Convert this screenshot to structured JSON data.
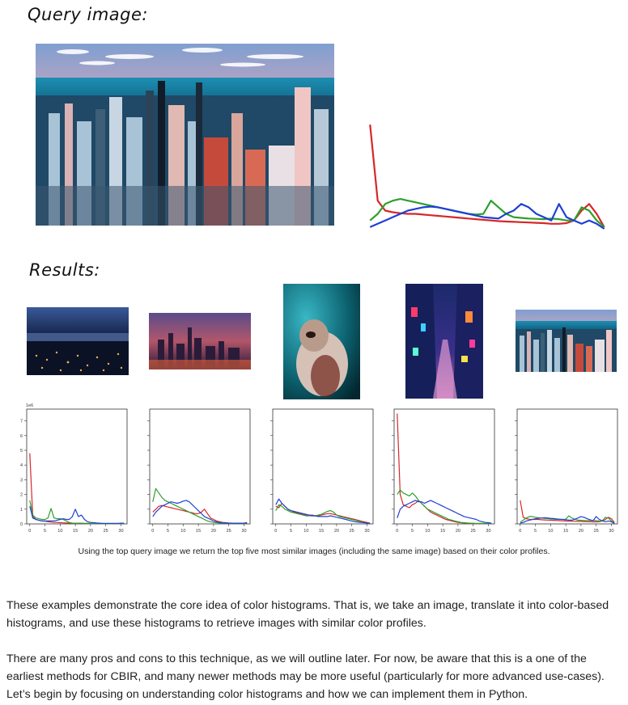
{
  "figure": {
    "query_label": "Query image:",
    "results_label": "Results:",
    "sci_scale": "1e6",
    "y_ticks": [
      "0",
      "1",
      "2",
      "3",
      "4",
      "5",
      "6",
      "7"
    ],
    "x_ticks": [
      "0",
      "5",
      "10",
      "15",
      "20",
      "25",
      "30"
    ],
    "caption": "Using the top query image we return the top five most similar images (including the same image) based on their color profiles.",
    "query_image": "aerial city skyline at sunset",
    "result_images": [
      "city lights at night from hill",
      "city skyline at dusk",
      "cat with teal background",
      "neon lit alley at night",
      "aerial city skyline at sunset"
    ],
    "series_colors": {
      "red": "#d62728",
      "green": "#2ca02c",
      "blue": "#1f3fd6"
    },
    "chart_data": [
      {
        "type": "line",
        "chart": "query-histogram",
        "x": [
          0,
          1,
          2,
          3,
          4,
          5,
          6,
          7,
          8,
          9,
          10,
          11,
          12,
          13,
          14,
          15,
          16,
          17,
          18,
          19,
          20,
          21,
          22,
          23,
          24,
          25,
          26,
          27,
          28,
          29,
          30,
          31
        ],
        "series": [
          {
            "color": "red",
            "values": [
              3.2,
              0.9,
              0.6,
              0.55,
              0.52,
              0.5,
              0.5,
              0.48,
              0.46,
              0.44,
              0.42,
              0.4,
              0.38,
              0.36,
              0.34,
              0.32,
              0.3,
              0.28,
              0.27,
              0.26,
              0.25,
              0.24,
              0.23,
              0.22,
              0.2,
              0.2,
              0.22,
              0.3,
              0.6,
              0.8,
              0.5,
              0.1
            ]
          },
          {
            "color": "green",
            "values": [
              0.3,
              0.5,
              0.8,
              0.9,
              0.95,
              0.9,
              0.85,
              0.8,
              0.75,
              0.7,
              0.65,
              0.6,
              0.55,
              0.5,
              0.48,
              0.5,
              0.9,
              0.7,
              0.5,
              0.4,
              0.38,
              0.36,
              0.35,
              0.34,
              0.36,
              0.34,
              0.3,
              0.3,
              0.7,
              0.6,
              0.3,
              0.1
            ]
          },
          {
            "color": "blue",
            "values": [
              0.1,
              0.2,
              0.3,
              0.4,
              0.5,
              0.6,
              0.65,
              0.7,
              0.72,
              0.7,
              0.65,
              0.6,
              0.55,
              0.5,
              0.45,
              0.4,
              0.38,
              0.36,
              0.5,
              0.6,
              0.8,
              0.7,
              0.5,
              0.4,
              0.3,
              0.8,
              0.4,
              0.3,
              0.2,
              0.3,
              0.2,
              0.05
            ]
          }
        ]
      },
      {
        "type": "line",
        "chart": "result-1",
        "ylim": [
          0,
          7.5
        ],
        "x": [
          0,
          1,
          2,
          3,
          4,
          5,
          6,
          7,
          8,
          9,
          10,
          11,
          12,
          13,
          14,
          15,
          16,
          17,
          18,
          19,
          20,
          21,
          22,
          23,
          24,
          25,
          26,
          27,
          28,
          29,
          30,
          31
        ],
        "series": [
          {
            "color": "red",
            "values": [
              4.8,
              0.5,
              0.3,
              0.25,
              0.2,
              0.18,
              0.15,
              0.12,
              0.1,
              0.1,
              0.08,
              0.07,
              0.06,
              0.05,
              0.05,
              0.05,
              0.04,
              0.04,
              0.03,
              0.03,
              0.03,
              0.03,
              0.02,
              0.02,
              0.02,
              0.02,
              0.02,
              0.02,
              0.02,
              0.02,
              0.02,
              0.05
            ]
          },
          {
            "color": "green",
            "values": [
              1.6,
              0.6,
              0.4,
              0.35,
              0.3,
              0.3,
              0.4,
              1.05,
              0.4,
              0.35,
              0.35,
              0.3,
              0.2,
              0.1,
              0.05,
              0.05,
              0.05,
              0.05,
              0.04,
              0.04,
              0.03,
              0.03,
              0.03,
              0.02,
              0.02,
              0.02,
              0.02,
              0.02,
              0.02,
              0.02,
              0.02,
              0.02
            ]
          },
          {
            "color": "blue",
            "values": [
              1.2,
              0.4,
              0.3,
              0.25,
              0.2,
              0.2,
              0.2,
              0.2,
              0.2,
              0.25,
              0.3,
              0.35,
              0.3,
              0.3,
              0.5,
              1.0,
              0.5,
              0.6,
              0.3,
              0.15,
              0.1,
              0.08,
              0.06,
              0.05,
              0.04,
              0.04,
              0.04,
              0.04,
              0.04,
              0.04,
              0.05,
              0.05
            ]
          }
        ]
      },
      {
        "type": "line",
        "chart": "result-2",
        "x": [
          0,
          1,
          2,
          3,
          4,
          5,
          6,
          7,
          8,
          9,
          10,
          11,
          12,
          13,
          14,
          15,
          16,
          17,
          18,
          19,
          20,
          21,
          22,
          23,
          24,
          25,
          26,
          27,
          28,
          29,
          30,
          31
        ],
        "series": [
          {
            "color": "red",
            "values": [
              0.8,
              1.0,
              1.2,
              1.25,
              1.2,
              1.15,
              1.1,
              1.05,
              1.0,
              0.95,
              0.9,
              0.85,
              0.8,
              0.75,
              0.7,
              0.7,
              0.8,
              1.0,
              0.7,
              0.4,
              0.3,
              0.2,
              0.15,
              0.1,
              0.08,
              0.06,
              0.05,
              0.05,
              0.05,
              0.05,
              0.05,
              0.1
            ]
          },
          {
            "color": "green",
            "values": [
              1.5,
              2.4,
              2.1,
              1.8,
              1.6,
              1.5,
              1.4,
              1.3,
              1.2,
              1.1,
              1.0,
              0.9,
              0.8,
              0.7,
              0.6,
              0.5,
              0.4,
              0.3,
              0.2,
              0.15,
              0.1,
              0.08,
              0.06,
              0.05,
              0.04,
              0.04,
              0.03,
              0.03,
              0.03,
              0.03,
              0.03,
              0.03
            ]
          },
          {
            "color": "blue",
            "values": [
              0.5,
              0.8,
              1.0,
              1.2,
              1.3,
              1.4,
              1.5,
              1.45,
              1.4,
              1.45,
              1.55,
              1.6,
              1.5,
              1.3,
              1.1,
              0.9,
              0.7,
              0.5,
              0.4,
              0.3,
              0.2,
              0.15,
              0.1,
              0.08,
              0.06,
              0.05,
              0.05,
              0.05,
              0.05,
              0.05,
              0.05,
              0.05
            ]
          }
        ]
      },
      {
        "type": "line",
        "chart": "result-3",
        "x": [
          0,
          1,
          2,
          3,
          4,
          5,
          6,
          7,
          8,
          9,
          10,
          11,
          12,
          13,
          14,
          15,
          16,
          17,
          18,
          19,
          20,
          21,
          22,
          23,
          24,
          25,
          26,
          27,
          28,
          29,
          30,
          31
        ],
        "series": [
          {
            "color": "red",
            "values": [
              1.2,
              1.1,
              1.4,
              1.2,
              1.0,
              0.9,
              0.8,
              0.75,
              0.7,
              0.65,
              0.6,
              0.6,
              0.6,
              0.55,
              0.55,
              0.6,
              0.65,
              0.7,
              0.7,
              0.65,
              0.6,
              0.55,
              0.5,
              0.45,
              0.4,
              0.35,
              0.3,
              0.25,
              0.2,
              0.15,
              0.1,
              0.05
            ]
          },
          {
            "color": "green",
            "values": [
              0.9,
              1.3,
              1.2,
              1.0,
              0.9,
              0.8,
              0.75,
              0.7,
              0.65,
              0.6,
              0.55,
              0.55,
              0.55,
              0.55,
              0.6,
              0.65,
              0.75,
              0.85,
              0.9,
              0.8,
              0.6,
              0.5,
              0.45,
              0.4,
              0.35,
              0.3,
              0.25,
              0.2,
              0.15,
              0.1,
              0.06,
              0.04
            ]
          },
          {
            "color": "blue",
            "values": [
              1.3,
              1.7,
              1.4,
              1.2,
              1.0,
              0.9,
              0.85,
              0.8,
              0.75,
              0.7,
              0.65,
              0.6,
              0.55,
              0.55,
              0.5,
              0.5,
              0.5,
              0.5,
              0.55,
              0.5,
              0.45,
              0.4,
              0.35,
              0.3,
              0.25,
              0.2,
              0.15,
              0.12,
              0.1,
              0.08,
              0.06,
              0.04
            ]
          }
        ]
      },
      {
        "type": "line",
        "chart": "result-4",
        "x": [
          0,
          1,
          2,
          3,
          4,
          5,
          6,
          7,
          8,
          9,
          10,
          11,
          12,
          13,
          14,
          15,
          16,
          17,
          18,
          19,
          20,
          21,
          22,
          23,
          24,
          25,
          26,
          27,
          28,
          29,
          30,
          31
        ],
        "series": [
          {
            "color": "red",
            "values": [
              7.5,
              2.0,
              1.3,
              1.2,
              1.1,
              1.3,
              1.4,
              1.6,
              1.4,
              1.2,
              1.0,
              0.8,
              0.7,
              0.6,
              0.5,
              0.4,
              0.3,
              0.25,
              0.2,
              0.15,
              0.1,
              0.08,
              0.06,
              0.05,
              0.04,
              0.04,
              0.03,
              0.03,
              0.03,
              0.03,
              0.03,
              0.03
            ]
          },
          {
            "color": "green",
            "values": [
              2.0,
              2.3,
              2.1,
              2.0,
              1.9,
              2.1,
              1.9,
              1.6,
              1.4,
              1.2,
              1.0,
              0.9,
              0.8,
              0.7,
              0.6,
              0.5,
              0.4,
              0.3,
              0.25,
              0.2,
              0.15,
              0.1,
              0.08,
              0.06,
              0.05,
              0.04,
              0.03,
              0.03,
              0.03,
              0.03,
              0.03,
              0.03
            ]
          },
          {
            "color": "blue",
            "values": [
              0.4,
              1.0,
              1.2,
              1.3,
              1.4,
              1.5,
              1.6,
              1.5,
              1.5,
              1.4,
              1.5,
              1.6,
              1.5,
              1.4,
              1.3,
              1.2,
              1.1,
              1.0,
              0.9,
              0.8,
              0.7,
              0.6,
              0.5,
              0.45,
              0.4,
              0.35,
              0.3,
              0.2,
              0.15,
              0.1,
              0.08,
              0.05
            ]
          }
        ]
      },
      {
        "type": "line",
        "chart": "result-5",
        "x": [
          0,
          1,
          2,
          3,
          4,
          5,
          6,
          7,
          8,
          9,
          10,
          11,
          12,
          13,
          14,
          15,
          16,
          17,
          18,
          19,
          20,
          21,
          22,
          23,
          24,
          25,
          26,
          27,
          28,
          29,
          30,
          31
        ],
        "series": [
          {
            "color": "red",
            "values": [
              1.6,
              0.45,
              0.35,
              0.32,
              0.3,
              0.3,
              0.3,
              0.28,
              0.27,
              0.26,
              0.25,
              0.24,
              0.23,
              0.22,
              0.21,
              0.2,
              0.19,
              0.18,
              0.18,
              0.17,
              0.17,
              0.16,
              0.15,
              0.15,
              0.14,
              0.14,
              0.15,
              0.2,
              0.3,
              0.45,
              0.35,
              0.1
            ]
          },
          {
            "color": "green",
            "values": [
              0.1,
              0.25,
              0.4,
              0.5,
              0.5,
              0.45,
              0.42,
              0.4,
              0.38,
              0.36,
              0.34,
              0.32,
              0.3,
              0.3,
              0.3,
              0.32,
              0.55,
              0.4,
              0.32,
              0.25,
              0.24,
              0.23,
              0.22,
              0.22,
              0.24,
              0.22,
              0.2,
              0.2,
              0.45,
              0.4,
              0.2,
              0.05
            ]
          },
          {
            "color": "blue",
            "values": [
              0.05,
              0.1,
              0.2,
              0.25,
              0.3,
              0.35,
              0.38,
              0.4,
              0.42,
              0.4,
              0.38,
              0.36,
              0.34,
              0.32,
              0.3,
              0.28,
              0.26,
              0.25,
              0.32,
              0.4,
              0.5,
              0.45,
              0.35,
              0.28,
              0.22,
              0.5,
              0.3,
              0.22,
              0.15,
              0.2,
              0.15,
              0.03
            ]
          }
        ]
      }
    ]
  },
  "paragraphs": [
    "These examples demonstrate the core idea of color histograms. That is, we take an image, translate it into color-based histograms, and use these histograms to retrieve images with similar color profiles.",
    "There are many pros and cons to this technique, as we will outline later. For now, be aware that this is a one of the earliest methods for CBIR, and many newer methods may be more useful (particularly for more advanced use-cases). Let’s begin by focusing on understanding color histograms and how we can implement them in Python."
  ]
}
